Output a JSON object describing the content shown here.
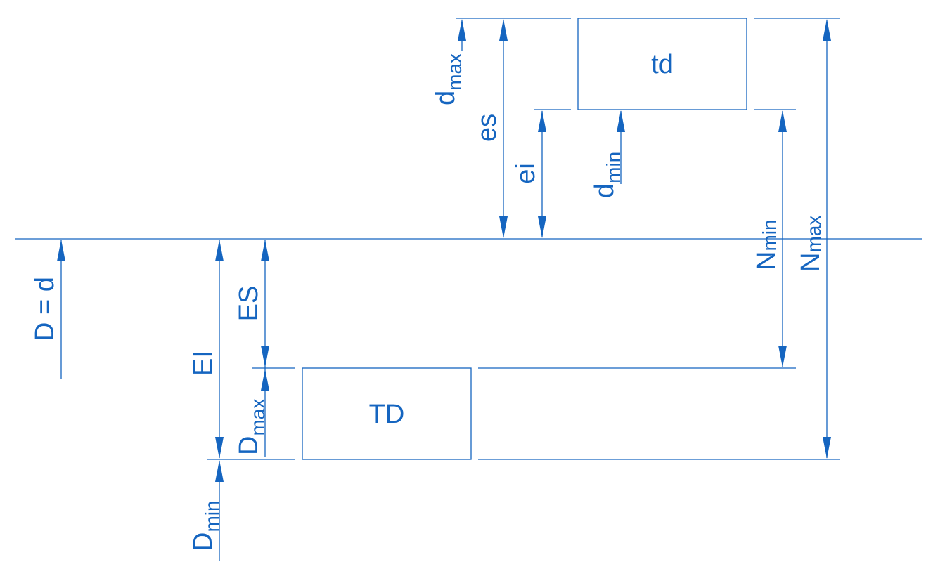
{
  "colors": {
    "drawing": "#1565c0",
    "background": "#ffffff"
  },
  "labels": {
    "td": "td",
    "TD": "TD",
    "D_eq_d": "D = d",
    "es": "es",
    "ei": "ei",
    "EI": "EI",
    "ES": "ES",
    "d_max": {
      "base": "d",
      "sub": "max"
    },
    "d_min": {
      "base": "d",
      "sub": "min"
    },
    "D_max": {
      "base": "D",
      "sub": "max"
    },
    "D_min": {
      "base": "D",
      "sub": "min"
    },
    "N_min": {
      "base": "N",
      "sub": "min"
    },
    "N_max": {
      "base": "N",
      "sub": "max"
    }
  }
}
